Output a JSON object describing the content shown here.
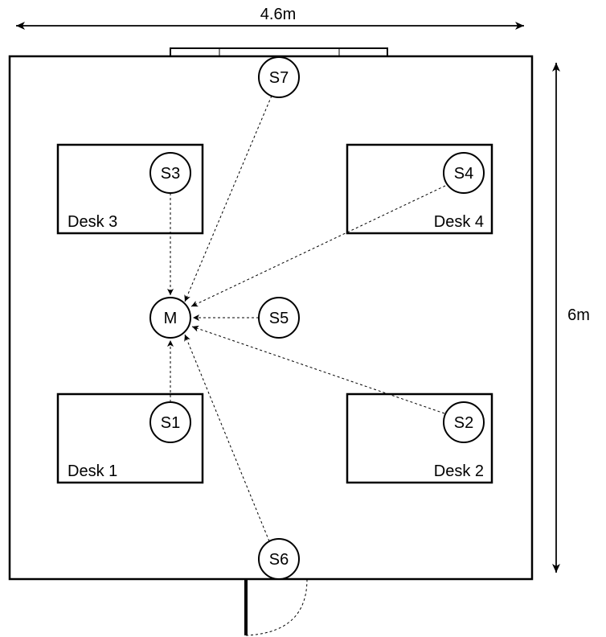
{
  "dimensions": {
    "width_label": "4.6m",
    "height_label": "6m"
  },
  "desks": [
    {
      "id": "desk-1",
      "label": "Desk 1"
    },
    {
      "id": "desk-2",
      "label": "Desk 2"
    },
    {
      "id": "desk-3",
      "label": "Desk 3"
    },
    {
      "id": "desk-4",
      "label": "Desk 4"
    }
  ],
  "sensors": [
    {
      "id": "s1",
      "label": "S1"
    },
    {
      "id": "s2",
      "label": "S2"
    },
    {
      "id": "s3",
      "label": "S3"
    },
    {
      "id": "s4",
      "label": "S4"
    },
    {
      "id": "s5",
      "label": "S5"
    },
    {
      "id": "s6",
      "label": "S6"
    },
    {
      "id": "s7",
      "label": "S7"
    }
  ],
  "master": {
    "label": "M"
  },
  "colors": {
    "stroke": "#000000",
    "background": "#ffffff"
  }
}
